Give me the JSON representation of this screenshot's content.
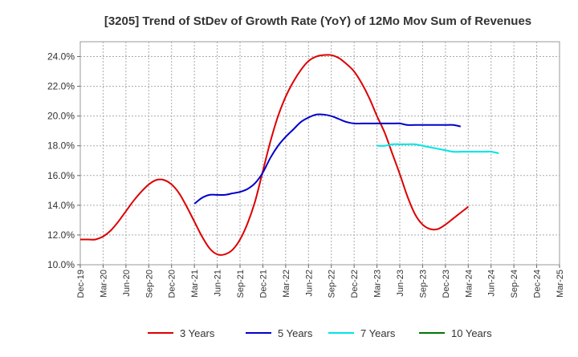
{
  "chart_data": {
    "type": "line",
    "title": "[3205]  Trend of StDev of Growth Rate (YoY) of 12Mo Mov Sum of Revenues",
    "xlabel": "",
    "ylabel": "",
    "x_ticks": [
      "Dec-19",
      "Mar-20",
      "Jun-20",
      "Sep-20",
      "Dec-20",
      "Mar-21",
      "Jun-21",
      "Sep-21",
      "Dec-21",
      "Mar-22",
      "Jun-22",
      "Sep-22",
      "Dec-22",
      "Mar-23",
      "Jun-23",
      "Sep-23",
      "Dec-23",
      "Mar-24",
      "Jun-24",
      "Sep-24",
      "Dec-24",
      "Mar-25"
    ],
    "ylim": [
      10.0,
      25.0
    ],
    "y_ticks": [
      "10.0%",
      "12.0%",
      "14.0%",
      "16.0%",
      "18.0%",
      "20.0%",
      "22.0%",
      "24.0%"
    ],
    "y_tick_values": [
      10,
      12,
      14,
      16,
      18,
      20,
      22,
      24
    ],
    "grid": true,
    "legend_position": "bottom",
    "series": [
      {
        "name": "3 Years",
        "color": "#dd0000",
        "start_index": 0,
        "values": [
          11.7,
          11.7,
          11.7,
          11.9,
          12.3,
          12.9,
          13.6,
          14.3,
          14.9,
          15.4,
          15.7,
          15.7,
          15.4,
          14.8,
          13.9,
          12.9,
          11.9,
          11.1,
          10.7,
          10.7,
          11.0,
          11.7,
          12.8,
          14.3,
          16.3,
          18.3,
          20.0,
          21.3,
          22.3,
          23.1,
          23.7,
          24.0,
          24.1,
          24.1,
          23.9,
          23.5,
          23.0,
          22.2,
          21.2,
          20.0,
          18.9,
          17.5,
          16.1,
          14.6,
          13.4,
          12.7,
          12.4,
          12.4,
          12.7,
          13.1,
          13.5,
          13.9
        ]
      },
      {
        "name": "5 Years",
        "color": "#0000cc",
        "start_index": 15,
        "values": [
          14.1,
          14.5,
          14.7,
          14.7,
          14.7,
          14.8,
          14.9,
          15.1,
          15.5,
          16.2,
          17.2,
          18.0,
          18.6,
          19.1,
          19.6,
          19.9,
          20.1,
          20.1,
          20.0,
          19.8,
          19.6,
          19.5,
          19.5,
          19.5,
          19.5,
          19.5,
          19.5,
          19.5,
          19.4,
          19.4,
          19.4,
          19.4,
          19.4,
          19.4,
          19.4,
          19.3
        ]
      },
      {
        "name": "7 Years",
        "color": "#00e5e5",
        "start_index": 39,
        "values": [
          18.0,
          18.0,
          18.1,
          18.1,
          18.1,
          18.1,
          18.0,
          17.9,
          17.8,
          17.7,
          17.6,
          17.6,
          17.6,
          17.6,
          17.6,
          17.6,
          17.5
        ]
      },
      {
        "name": "10 Years",
        "color": "#007700",
        "start_index": 0,
        "values": []
      }
    ]
  }
}
